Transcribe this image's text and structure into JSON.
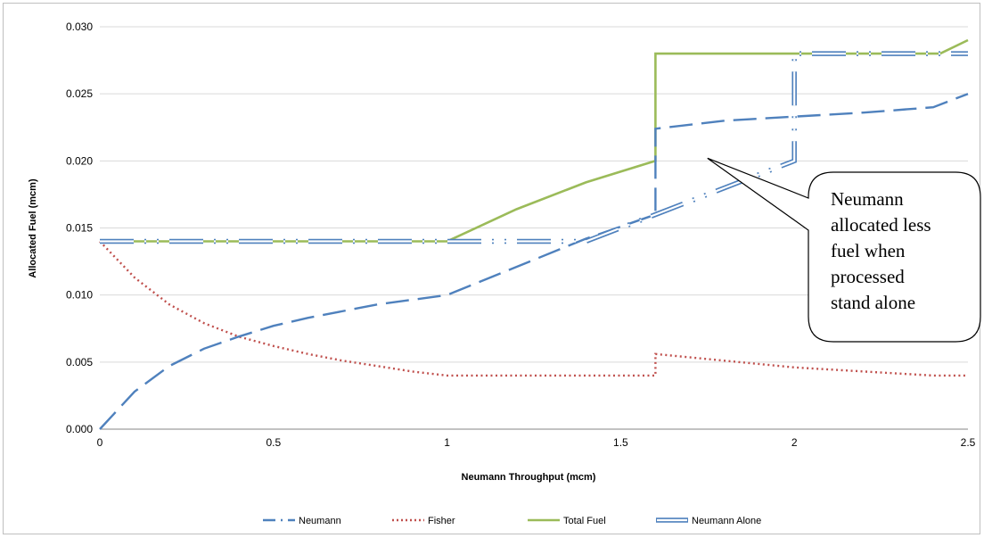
{
  "chart_data": {
    "type": "line",
    "title": "",
    "xlabel": "Neumann Throughput  (mcm)",
    "ylabel": "Allocated Fuel (mcm)",
    "xlim": [
      0,
      2.5
    ],
    "ylim": [
      0,
      0.03
    ],
    "x_ticks": [
      "0",
      "0.5",
      "1",
      "1.5",
      "2",
      "2.5"
    ],
    "y_ticks": [
      "0.000",
      "0.005",
      "0.010",
      "0.015",
      "0.020",
      "0.025",
      "0.030"
    ],
    "grid": "horizontal",
    "legend_position": "bottom",
    "series": [
      {
        "name": "Neumann",
        "color": "#4f81bd",
        "style": "long-dash",
        "x": [
          0,
          0.1,
          0.2,
          0.3,
          0.4,
          0.5,
          0.6,
          0.8,
          1.0,
          1.2,
          1.4,
          1.6,
          1.6,
          1.8,
          2.0,
          2.2,
          2.4,
          2.5
        ],
        "y": [
          0,
          0.0028,
          0.0047,
          0.006,
          0.0069,
          0.0077,
          0.0083,
          0.0093,
          0.01,
          0.0121,
          0.0142,
          0.016,
          0.0224,
          0.023,
          0.0233,
          0.0236,
          0.024,
          0.025
        ]
      },
      {
        "name": "Fisher",
        "color": "#c0504d",
        "style": "dotted",
        "x": [
          0,
          0.1,
          0.2,
          0.3,
          0.4,
          0.5,
          0.6,
          0.7,
          0.8,
          0.9,
          1.0,
          1.2,
          1.4,
          1.6,
          1.6,
          1.8,
          2.0,
          2.2,
          2.4,
          2.5
        ],
        "y": [
          0.014,
          0.0113,
          0.0093,
          0.0079,
          0.0069,
          0.0062,
          0.0056,
          0.0051,
          0.0047,
          0.0043,
          0.004,
          0.004,
          0.004,
          0.004,
          0.0056,
          0.0051,
          0.0046,
          0.0043,
          0.004,
          0.004
        ]
      },
      {
        "name": "Total Fuel",
        "color": "#9bbb59",
        "style": "solid",
        "x": [
          0,
          1.0,
          1.2,
          1.4,
          1.6,
          1.6,
          2.0,
          2.42,
          2.5
        ],
        "y": [
          0.014,
          0.014,
          0.0164,
          0.0184,
          0.02,
          0.028,
          0.028,
          0.028,
          0.029
        ]
      },
      {
        "name": "Neumann Alone",
        "color": "#4f81bd",
        "style": "double-dash-dot",
        "x": [
          0,
          1.0,
          1.2,
          1.4,
          1.6,
          1.8,
          2.0,
          2.0,
          2.5
        ],
        "y": [
          0.014,
          0.014,
          0.014,
          0.014,
          0.016,
          0.018,
          0.02,
          0.028,
          0.028
        ]
      }
    ],
    "annotations": [
      {
        "text_lines": [
          "Neumann",
          "allocated less",
          "fuel when",
          "processed",
          "stand alone"
        ],
        "points_to": {
          "x": 1.75,
          "y": 0.0202
        }
      }
    ]
  }
}
